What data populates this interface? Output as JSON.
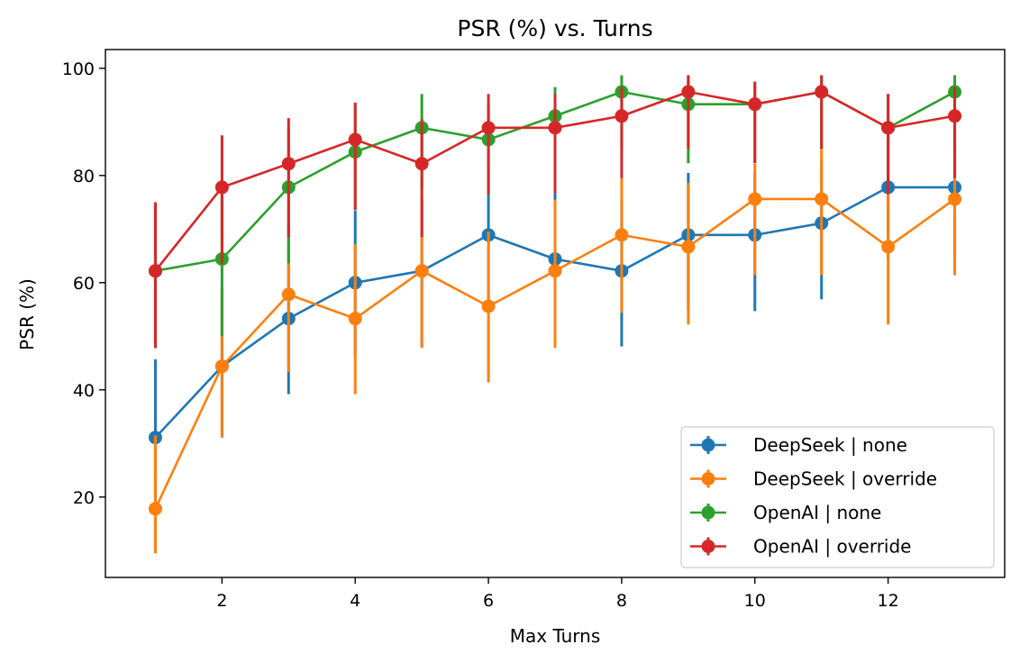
{
  "chart_data": {
    "type": "line",
    "title": "PSR (%) vs. Turns",
    "xlabel": "Max Turns",
    "ylabel": "PSR (%)",
    "xlim": [
      0.25,
      13.75
    ],
    "ylim": [
      5,
      103.5
    ],
    "xticks": [
      2,
      4,
      6,
      8,
      10,
      12
    ],
    "yticks": [
      20,
      40,
      60,
      80,
      100
    ],
    "legend_position": "lower-right",
    "x": [
      1,
      2,
      3,
      4,
      5,
      6,
      7,
      8,
      9,
      10,
      11,
      12,
      13
    ],
    "series": [
      {
        "name": "DeepSeek | none",
        "color": "#1f77b4",
        "values": [
          31.1,
          44.4,
          53.3,
          60.0,
          62.2,
          68.9,
          64.4,
          62.2,
          68.9,
          68.9,
          71.1,
          77.8,
          77.8
        ],
        "err_low": [
          17.8,
          31.1,
          39.2,
          46.1,
          48.1,
          55.0,
          50.5,
          48.1,
          55.0,
          54.7,
          56.9,
          64.4,
          64.4
        ],
        "err_high": [
          45.7,
          59.1,
          67.4,
          73.5,
          75.5,
          80.5,
          77.6,
          75.3,
          80.5,
          80.5,
          82.9,
          88.9,
          88.9
        ]
      },
      {
        "name": "DeepSeek | override",
        "color": "#ff7f0e",
        "values": [
          17.8,
          44.4,
          57.8,
          53.3,
          62.2,
          55.6,
          62.2,
          68.9,
          66.7,
          75.6,
          75.6,
          66.7,
          75.6
        ],
        "err_low": [
          9.5,
          31.1,
          43.3,
          39.2,
          47.8,
          41.4,
          47.8,
          54.4,
          52.2,
          61.4,
          61.4,
          52.2,
          61.4
        ],
        "err_high": [
          31.5,
          58.9,
          71.1,
          67.2,
          75.7,
          69.5,
          75.5,
          79.5,
          78.6,
          82.2,
          85.3,
          78.5,
          85.5
        ]
      },
      {
        "name": "OpenAI | none",
        "color": "#2ca02c",
        "values": [
          62.2,
          64.4,
          77.8,
          84.4,
          88.9,
          86.7,
          91.1,
          95.6,
          93.3,
          93.3,
          95.6,
          88.9,
          95.6
        ],
        "err_low": [
          47.8,
          50.0,
          63.6,
          73.6,
          77.5,
          76.3,
          79.0,
          85.0,
          82.3,
          82.3,
          85.0,
          76.5,
          85.0
        ],
        "err_high": [
          74.5,
          76.4,
          89.3,
          93.4,
          95.2,
          93.5,
          96.5,
          98.7,
          98.6,
          97.5,
          98.7,
          95.2,
          98.7
        ]
      },
      {
        "name": "OpenAI | override",
        "color": "#d62728",
        "values": [
          62.2,
          77.8,
          82.2,
          86.7,
          82.2,
          88.9,
          88.9,
          91.1,
          95.6,
          93.3,
          95.6,
          88.9,
          91.1
        ],
        "err_low": [
          47.8,
          63.5,
          68.5,
          73.6,
          68.5,
          76.5,
          76.7,
          79.5,
          85.0,
          82.3,
          85.0,
          76.5,
          79.5
        ],
        "err_high": [
          75.0,
          87.5,
          90.7,
          93.6,
          90.5,
          95.2,
          95.2,
          96.5,
          98.7,
          97.5,
          98.7,
          95.2,
          96.5
        ]
      }
    ]
  }
}
